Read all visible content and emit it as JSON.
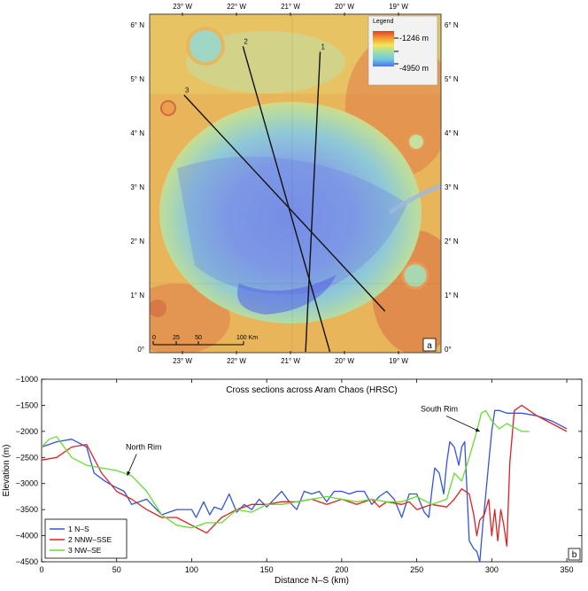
{
  "map_panel": {
    "panel_label": "a",
    "legend": {
      "title": "Legend",
      "max_label": "-1246 m",
      "min_label": "-4950 m",
      "colors": [
        "#e0402a",
        "#f29a2e",
        "#f6e35a",
        "#9be0a8",
        "#6fc7e2",
        "#4a73e8"
      ]
    },
    "lon_labels": [
      "23° W",
      "22° W",
      "21° W",
      "20° W",
      "19° W"
    ],
    "lat_labels": [
      "6° N",
      "5° N",
      "4° N",
      "3° N",
      "2° N",
      "1° N",
      "0°"
    ],
    "scale_bar": {
      "ticks": [
        "0",
        "25",
        "50",
        "100 Km"
      ]
    },
    "profiles": [
      {
        "label": "1",
        "from": [
          20.45,
          5.55
        ],
        "to": [
          20.72,
          0.0
        ]
      },
      {
        "label": "2",
        "from": [
          21.88,
          5.65
        ],
        "to": [
          20.27,
          0.0
        ]
      },
      {
        "label": "3",
        "from": [
          22.97,
          4.75
        ],
        "to": [
          19.25,
          0.75
        ]
      }
    ]
  },
  "chart_data": {
    "type": "line",
    "title": "Cross sections across Aram Chaos (HRSC)",
    "xlabel": "Distance N–S (km)",
    "ylabel": "Elevation (m)",
    "xlim": [
      0,
      360
    ],
    "ylim": [
      -4500,
      -1000
    ],
    "xticks": [
      0,
      50,
      100,
      150,
      200,
      250,
      300,
      350
    ],
    "yticks": [
      -1000,
      -1500,
      -2000,
      -2500,
      -3000,
      -3500,
      -4000,
      -4500
    ],
    "panel_label": "b",
    "annotations": [
      {
        "text": "North Rim",
        "x": 57,
        "y": -2850,
        "label_x": 68,
        "label_y": -2350
      },
      {
        "text": "South Rim",
        "x": 292,
        "y": -2000,
        "label_x": 265,
        "label_y": -1620
      }
    ],
    "series": [
      {
        "name": "1 N–S",
        "color": "#3355dd",
        "x": [
          0,
          10,
          20,
          30,
          35,
          42,
          48,
          55,
          60,
          70,
          80,
          90,
          100,
          103,
          108,
          112,
          115,
          120,
          125,
          130,
          135,
          140,
          145,
          150,
          155,
          160,
          165,
          170,
          175,
          180,
          185,
          190,
          195,
          200,
          205,
          210,
          215,
          220,
          225,
          230,
          235,
          240,
          245,
          250,
          255,
          258,
          260,
          262,
          265,
          268,
          270,
          272,
          275,
          278,
          280,
          282,
          285,
          288,
          290,
          292,
          294,
          296,
          298,
          300,
          302,
          305,
          310,
          320,
          330,
          340,
          350
        ],
        "y": [
          -2300,
          -2200,
          -2150,
          -2300,
          -2800,
          -2950,
          -3050,
          -3150,
          -3400,
          -3300,
          -3600,
          -3500,
          -3500,
          -3650,
          -3350,
          -3600,
          -3450,
          -3500,
          -3200,
          -3550,
          -3400,
          -3500,
          -3300,
          -3450,
          -3300,
          -3150,
          -3350,
          -3500,
          -3150,
          -3200,
          -3150,
          -3350,
          -3150,
          -3150,
          -3200,
          -3150,
          -3150,
          -3400,
          -3250,
          -3150,
          -3300,
          -3650,
          -3200,
          -3200,
          -3550,
          -3650,
          -3150,
          -2700,
          -2800,
          -3200,
          -2600,
          -2200,
          -2300,
          -2650,
          -2300,
          -2200,
          -4100,
          -4250,
          -4300,
          -4500,
          -3800,
          -3200,
          -2600,
          -2000,
          -1600,
          -1600,
          -1650,
          -1650,
          -1700,
          -1800,
          -1950
        ]
      },
      {
        "name": "2 NNW–SSE",
        "color": "#dd2222",
        "x": [
          0,
          10,
          20,
          30,
          40,
          50,
          60,
          70,
          80,
          90,
          100,
          110,
          120,
          130,
          140,
          150,
          160,
          170,
          180,
          190,
          200,
          210,
          220,
          225,
          230,
          240,
          245,
          250,
          260,
          270,
          275,
          280,
          285,
          288,
          290,
          292,
          295,
          298,
          300,
          302,
          304,
          306,
          308,
          310,
          312,
          315,
          320,
          330,
          340,
          350
        ],
        "y": [
          -2550,
          -2500,
          -2300,
          -2250,
          -2800,
          -3150,
          -3300,
          -3500,
          -3650,
          -3650,
          -3800,
          -3950,
          -3650,
          -3500,
          -3400,
          -3400,
          -3350,
          -3350,
          -3300,
          -3400,
          -3300,
          -3400,
          -3300,
          -3450,
          -3350,
          -3400,
          -3350,
          -3500,
          -3400,
          -3450,
          -3300,
          -3100,
          -3200,
          -3600,
          -4000,
          -3700,
          -3600,
          -3300,
          -4000,
          -3500,
          -4100,
          -3500,
          -3800,
          -4200,
          -2600,
          -1600,
          -1500,
          -1700,
          -1850,
          -2000
        ]
      },
      {
        "name": "3 NW–SE",
        "color": "#66dd33",
        "x": [
          0,
          5,
          10,
          20,
          30,
          40,
          50,
          60,
          70,
          80,
          90,
          100,
          110,
          120,
          130,
          140,
          150,
          160,
          170,
          180,
          190,
          200,
          210,
          220,
          230,
          240,
          250,
          260,
          270,
          275,
          280,
          285,
          290,
          293,
          296,
          300,
          305,
          310,
          320,
          325
        ],
        "y": [
          -2300,
          -2150,
          -2100,
          -2500,
          -2650,
          -2700,
          -2750,
          -2850,
          -3150,
          -3600,
          -3800,
          -3850,
          -3750,
          -3750,
          -3500,
          -3550,
          -3400,
          -3400,
          -3350,
          -3300,
          -3250,
          -3300,
          -3350,
          -3300,
          -3350,
          -3350,
          -3250,
          -3400,
          -3300,
          -2800,
          -2950,
          -2500,
          -2000,
          -1650,
          -1600,
          -1800,
          -1950,
          -1850,
          -2000,
          -2000
        ]
      }
    ]
  }
}
